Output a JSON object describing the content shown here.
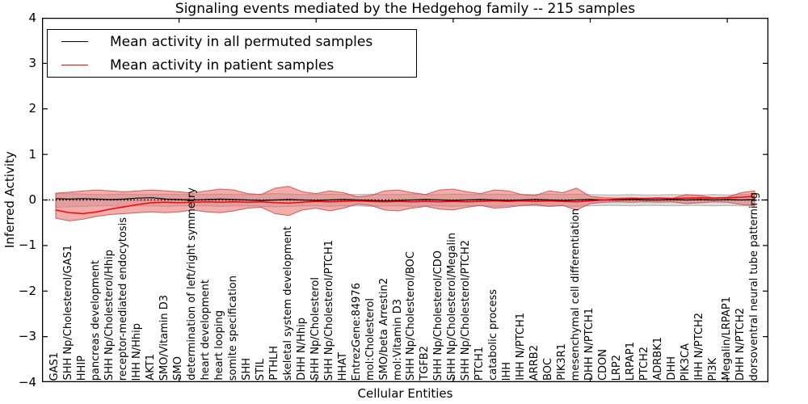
{
  "title": "Signaling events mediated by the Hedgehog family -- 215 samples",
  "legend": {
    "items": [
      {
        "label": "Mean activity in all permuted samples",
        "color": "#000000"
      },
      {
        "label": "Mean activity in patient samples",
        "color": "#ff0000"
      }
    ]
  },
  "axes": {
    "ylabel": "Inferred Activity",
    "xlabel": "Cellular Entities",
    "yticks": [
      {
        "label": "4",
        "value": 4
      },
      {
        "label": "3",
        "value": 3
      },
      {
        "label": "2",
        "value": 2
      },
      {
        "label": "1",
        "value": 1
      },
      {
        "label": "0",
        "value": 0
      },
      {
        "label": "−1",
        "value": -1
      },
      {
        "label": "−2",
        "value": -2
      },
      {
        "label": "−3",
        "value": -3
      },
      {
        "label": "−4",
        "value": -4
      }
    ]
  },
  "chart_data": {
    "type": "line",
    "title": "Signaling events mediated by the Hedgehog family -- 215 samples",
    "xlabel": "Cellular Entities",
    "ylabel": "Inferred Activity",
    "ylim": [
      -4,
      4
    ],
    "xlim": [
      0,
      53
    ],
    "x_major_ticks": [
      10,
      20,
      30,
      40,
      50
    ],
    "grid": false,
    "zero_line": true,
    "legend_position": "upper left",
    "categories": [
      "GAS1",
      "SHH Np/Cholesterol/GAS1",
      "HHIP",
      "pancreas development",
      "SHH Np/Cholesterol/Hhip",
      "receptor-mediated endocytosis",
      "IHH N/Hhip",
      "AKT1",
      "SMO/Vitamin D3",
      "SMO",
      "determination of left/right symmetry",
      "heart development",
      "heart looping",
      "somite specification",
      "SHH",
      "STIL",
      "PTHLH",
      "skeletal system development",
      "DHH N/Hhip",
      "SHH Np/Cholesterol",
      "SHH Np/Cholesterol/PTCH1",
      "HHAT",
      "EntrezGene:84976",
      "mol:Cholesterol",
      "SMO/beta Arrestin2",
      "mol:Vitamin D3",
      "SHH Np/Cholesterol/BOC",
      "TGFB2",
      "SHH Np/Cholesterol/CDO",
      "SHH Np/Cholesterol/Megalin",
      "SHH Np/Cholesterol/PTCH2",
      "PTCH1",
      "catabolic process",
      "IHH",
      "IHH N/PTCH1",
      "ARRB2",
      "BOC",
      "PIK3R1",
      "mesenchymal cell differentiation",
      "DHH N/PTCH1",
      "CDON",
      "LRP2",
      "LRPAP1",
      "PTCH2",
      "ADRBK1",
      "DHH",
      "PIK3CA",
      "IHH N/PTCH2",
      "PI3K",
      "Megalin/LRPAP1",
      "DHH N/PTCH2",
      "dorsoventral neural tube patterning"
    ],
    "series": [
      {
        "name": "Mean activity in all permuted samples",
        "color": "#000000",
        "values": [
          0.03,
          0.02,
          0.03,
          0.02,
          0.01,
          0.02,
          0.04,
          0.05,
          0.02,
          0.01,
          0.0,
          0.01,
          0.02,
          0.01,
          0.0,
          -0.01,
          0.0,
          0.01,
          0.0,
          -0.01,
          0.0,
          0.01,
          0.0,
          -0.01,
          -0.02,
          -0.01,
          0.0,
          0.01,
          0.0,
          -0.01,
          0.0,
          0.01,
          0.0,
          -0.01,
          0.0,
          0.01,
          0.0,
          -0.01,
          0.0,
          0.01,
          0.0,
          0.0,
          0.01,
          0.0,
          0.0,
          0.01,
          0.0,
          0.01,
          0.0,
          0.01,
          0.0,
          0.01
        ]
      },
      {
        "name": "Mean activity in patient samples",
        "color": "#ff0000",
        "values": [
          -0.22,
          -0.28,
          -0.3,
          -0.26,
          -0.2,
          -0.15,
          -0.1,
          -0.06,
          -0.05,
          -0.06,
          -0.05,
          -0.04,
          -0.05,
          -0.04,
          -0.05,
          -0.04,
          -0.06,
          -0.07,
          -0.05,
          -0.03,
          -0.04,
          -0.03,
          -0.02,
          -0.03,
          -0.04,
          -0.03,
          -0.04,
          -0.03,
          -0.04,
          -0.03,
          -0.04,
          -0.03,
          -0.02,
          -0.03,
          -0.02,
          -0.03,
          -0.02,
          -0.03,
          -0.04,
          -0.02,
          0.0,
          0.02,
          0.03,
          0.03,
          0.04,
          0.03,
          0.04,
          0.05,
          0.04,
          0.05,
          0.06,
          0.08
        ]
      }
    ],
    "bands": [
      {
        "name": "permuted-samples-band",
        "fill": "#b4b4b4",
        "edge": "#a0a0a0",
        "upper": [
          0.14,
          0.14,
          0.13,
          0.12,
          0.12,
          0.13,
          0.12,
          0.12,
          0.13,
          0.12,
          0.12,
          0.12,
          0.13,
          0.12,
          0.12,
          0.13,
          0.14,
          0.13,
          0.12,
          0.12,
          0.13,
          0.12,
          0.12,
          0.13,
          0.12,
          0.12,
          0.13,
          0.12,
          0.12,
          0.13,
          0.12,
          0.12,
          0.13,
          0.12,
          0.12,
          0.12,
          0.13,
          0.12,
          0.13,
          0.12,
          0.11,
          0.11,
          0.12,
          0.11,
          0.11,
          0.12,
          0.11,
          0.11,
          0.12,
          0.11,
          0.12,
          0.12
        ],
        "lower": [
          -0.16,
          -0.15,
          -0.14,
          -0.13,
          -0.13,
          -0.14,
          -0.13,
          -0.13,
          -0.14,
          -0.13,
          -0.13,
          -0.13,
          -0.14,
          -0.13,
          -0.13,
          -0.14,
          -0.15,
          -0.14,
          -0.13,
          -0.13,
          -0.14,
          -0.13,
          -0.13,
          -0.14,
          -0.13,
          -0.13,
          -0.14,
          -0.13,
          -0.13,
          -0.14,
          -0.13,
          -0.13,
          -0.14,
          -0.13,
          -0.13,
          -0.13,
          -0.14,
          -0.13,
          -0.14,
          -0.13,
          -0.12,
          -0.12,
          -0.13,
          -0.12,
          -0.12,
          -0.13,
          -0.12,
          -0.12,
          -0.13,
          -0.12,
          -0.13,
          -0.13
        ]
      },
      {
        "name": "patient-samples-band",
        "fill": "#e76a6a",
        "edge": "#cb3c3c",
        "upper": [
          0.15,
          0.17,
          0.2,
          0.22,
          0.2,
          0.18,
          0.2,
          0.22,
          0.2,
          0.18,
          0.15,
          0.2,
          0.24,
          0.22,
          0.14,
          0.12,
          0.26,
          0.3,
          0.18,
          0.14,
          0.2,
          0.16,
          0.07,
          0.1,
          0.2,
          0.22,
          0.16,
          0.12,
          0.22,
          0.24,
          0.18,
          0.14,
          0.22,
          0.2,
          0.12,
          0.1,
          0.2,
          0.16,
          0.26,
          0.08,
          0.05,
          0.04,
          0.05,
          0.04,
          0.05,
          0.04,
          0.12,
          0.1,
          0.05,
          0.06,
          0.16,
          0.2
        ],
        "lower": [
          -0.4,
          -0.46,
          -0.42,
          -0.36,
          -0.32,
          -0.3,
          -0.28,
          -0.26,
          -0.28,
          -0.26,
          -0.22,
          -0.26,
          -0.28,
          -0.24,
          -0.18,
          -0.16,
          -0.3,
          -0.34,
          -0.22,
          -0.18,
          -0.24,
          -0.18,
          -0.09,
          -0.12,
          -0.22,
          -0.24,
          -0.18,
          -0.14,
          -0.2,
          -0.22,
          -0.16,
          -0.12,
          -0.18,
          -0.16,
          -0.12,
          -0.1,
          -0.14,
          -0.12,
          -0.22,
          -0.08,
          -0.05,
          -0.04,
          -0.05,
          -0.04,
          -0.05,
          -0.04,
          -0.08,
          -0.06,
          -0.04,
          -0.05,
          -0.1,
          -0.12
        ]
      }
    ]
  }
}
